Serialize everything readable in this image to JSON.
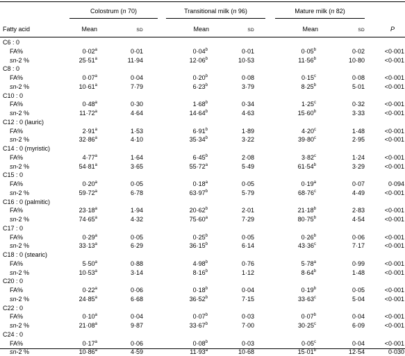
{
  "groups": [
    {
      "name": "Colostrum",
      "n_label": "n",
      "n_value": "70"
    },
    {
      "name": "Transitional milk",
      "n_label": "n",
      "n_value": "96"
    },
    {
      "name": "Mature milk",
      "n_label": "n",
      "n_value": "82"
    }
  ],
  "headers": {
    "fatty_acid": "Fatty acid",
    "mean": "Mean",
    "sd": "SD",
    "p": "P"
  },
  "row_labels": {
    "fa": "FA%",
    "sn2_prefix": "sn",
    "sn2_suffix": "-2 %"
  },
  "rows": [
    {
      "name": "C6 : 0",
      "fa": {
        "vals": [
          "0·02",
          "0·01",
          "0·04",
          "0·01",
          "0·05",
          "0·02"
        ],
        "sups": [
          "a",
          "b",
          "b"
        ],
        "p": "<0·001"
      },
      "sn2": {
        "vals": [
          "25·51",
          "11·94",
          "12·06",
          "10·53",
          "11·56",
          "10·80"
        ],
        "sups": [
          "a",
          "b",
          "b"
        ],
        "p": "<0·001"
      }
    },
    {
      "name": "C8 : 0",
      "fa": {
        "vals": [
          "0·07",
          "0·04",
          "0·20",
          "0·08",
          "0·15",
          "0·08"
        ],
        "sups": [
          "a",
          "b",
          "c"
        ],
        "p": "<0·001"
      },
      "sn2": {
        "vals": [
          "10·61",
          "7·79",
          "6·23",
          "3·79",
          "8·25",
          "5·01"
        ],
        "sups": [
          "a",
          "b",
          "b"
        ],
        "p": "<0·001"
      }
    },
    {
      "name": "C10 : 0",
      "fa": {
        "vals": [
          "0·48",
          "0·30",
          "1·68",
          "0·34",
          "1·25",
          "0·32"
        ],
        "sups": [
          "a",
          "b",
          "c"
        ],
        "p": "<0·001"
      },
      "sn2": {
        "vals": [
          "11·72",
          "4·64",
          "14·64",
          "4·63",
          "15·60",
          "3·33"
        ],
        "sups": [
          "a",
          "b",
          "b"
        ],
        "p": "<0·001"
      }
    },
    {
      "name": "C12 : 0 (lauric)",
      "fa": {
        "vals": [
          "2·91",
          "1·53",
          "6·91",
          "1·89",
          "4·20",
          "1·48"
        ],
        "sups": [
          "a",
          "b",
          "c"
        ],
        "p": "<0·001"
      },
      "sn2": {
        "vals": [
          "32·86",
          "4·10",
          "35·34",
          "3·22",
          "39·80",
          "2·95"
        ],
        "sups": [
          "a",
          "b",
          "c"
        ],
        "p": "<0·001"
      }
    },
    {
      "name": "C14 : 0 (myristic)",
      "fa": {
        "vals": [
          "4·77",
          "1·64",
          "6·45",
          "2·08",
          "3·82",
          "1·24"
        ],
        "sups": [
          "a",
          "b",
          "c"
        ],
        "p": "<0·001"
      },
      "sn2": {
        "vals": [
          "54·81",
          "3·65",
          "55·72",
          "5·49",
          "61·54",
          "3·29"
        ],
        "sups": [
          "a",
          "a",
          "b"
        ],
        "p": "<0·001"
      }
    },
    {
      "name": "C15 : 0",
      "fa": {
        "vals": [
          "0·20",
          "0·05",
          "0·18",
          "0·05",
          "0·19",
          "0·07"
        ],
        "sups": [
          "a",
          "a",
          "a"
        ],
        "p": "0·094"
      },
      "sn2": {
        "vals": [
          "59·72",
          "6·78",
          "63·97",
          "5·79",
          "68·76",
          "4·49"
        ],
        "sups": [
          "a",
          "b",
          "c"
        ],
        "p": "<0·001"
      }
    },
    {
      "name": "C16 : 0 (palmitic)",
      "fa": {
        "vals": [
          "23·18",
          "1·94",
          "20·62",
          "2·01",
          "21·18",
          "2·83"
        ],
        "sups": [
          "a",
          "b",
          "b"
        ],
        "p": "<0·001"
      },
      "sn2": {
        "vals": [
          "74·65",
          "4·32",
          "75·60",
          "7·29",
          "80·75",
          "4·54"
        ],
        "sups": [
          "a",
          "a",
          "b"
        ],
        "p": "<0·001"
      }
    },
    {
      "name": "C17 : 0",
      "fa": {
        "vals": [
          "0·29",
          "0·05",
          "0·25",
          "0·05",
          "0·26",
          "0·06"
        ],
        "sups": [
          "a",
          "b",
          "b"
        ],
        "p": "<0·001"
      },
      "sn2": {
        "vals": [
          "33·13",
          "6·29",
          "36·15",
          "6·14",
          "43·36",
          "7·17"
        ],
        "sups": [
          "a",
          "b",
          "c"
        ],
        "p": "<0·001"
      }
    },
    {
      "name": "C18 : 0 (stearic)",
      "fa": {
        "vals": [
          "5·50",
          "0·88",
          "4·98",
          "0·76",
          "5·78",
          "0·99"
        ],
        "sups": [
          "a",
          "b",
          "a"
        ],
        "p": "<0·001"
      },
      "sn2": {
        "vals": [
          "10·53",
          "3·14",
          "8·16",
          "1·12",
          "8·64",
          "1·48"
        ],
        "sups": [
          "a",
          "b",
          "b"
        ],
        "p": "<0·001"
      }
    },
    {
      "name": "C20 : 0",
      "fa": {
        "vals": [
          "0·22",
          "0·06",
          "0·18",
          "0·04",
          "0·19",
          "0·05"
        ],
        "sups": [
          "a",
          "b",
          "b"
        ],
        "p": "<0·001"
      },
      "sn2": {
        "vals": [
          "24·85",
          "6·68",
          "36·52",
          "7·15",
          "33·63",
          "5·04"
        ],
        "sups": [
          "a",
          "b",
          "c"
        ],
        "p": "<0·001"
      }
    },
    {
      "name": "C22 : 0",
      "fa": {
        "vals": [
          "0·10",
          "0·04",
          "0·07",
          "0·03",
          "0·07",
          "0·04"
        ],
        "sups": [
          "a",
          "b",
          "b"
        ],
        "p": "<0·001"
      },
      "sn2": {
        "vals": [
          "21·08",
          "9·87",
          "33·67",
          "7·00",
          "30·25",
          "6·09"
        ],
        "sups": [
          "a",
          "b",
          "c"
        ],
        "p": "<0·001"
      }
    },
    {
      "name": "C24 : 0",
      "fa": {
        "vals": [
          "0·17",
          "0·06",
          "0·08",
          "0·03",
          "0·05",
          "0·04"
        ],
        "sups": [
          "a",
          "b",
          "c"
        ],
        "p": "<0·001"
      },
      "sn2": {
        "vals": [
          "10·86",
          "4·59",
          "11·93",
          "10·68",
          "15·01",
          "12·54"
        ],
        "sups": [
          "a",
          "a",
          "b"
        ],
        "p": "0·030"
      }
    }
  ]
}
